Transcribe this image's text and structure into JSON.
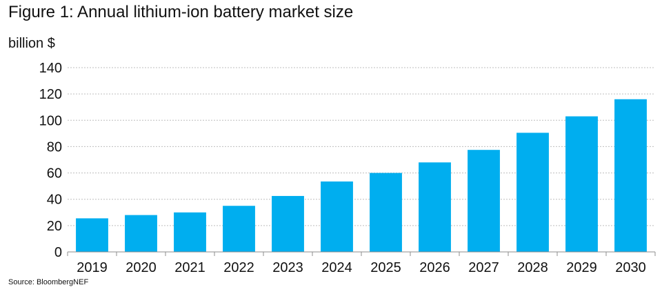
{
  "chart_data": {
    "type": "bar",
    "title": "Figure 1: Annual lithium-ion battery market size",
    "ylabel": "billion $",
    "xlabel": "",
    "categories": [
      "2019",
      "2020",
      "2021",
      "2022",
      "2023",
      "2024",
      "2025",
      "2026",
      "2027",
      "2028",
      "2029",
      "2030"
    ],
    "values": [
      25.5,
      28,
      30,
      35,
      42.5,
      53.5,
      60,
      68,
      77.5,
      90.5,
      103,
      116
    ],
    "ylim": [
      0,
      140
    ],
    "yticks": [
      0,
      20,
      40,
      60,
      80,
      100,
      120,
      140
    ],
    "grid": true,
    "bar_color": "#00aeef",
    "source": "Source: BloombergNEF"
  }
}
